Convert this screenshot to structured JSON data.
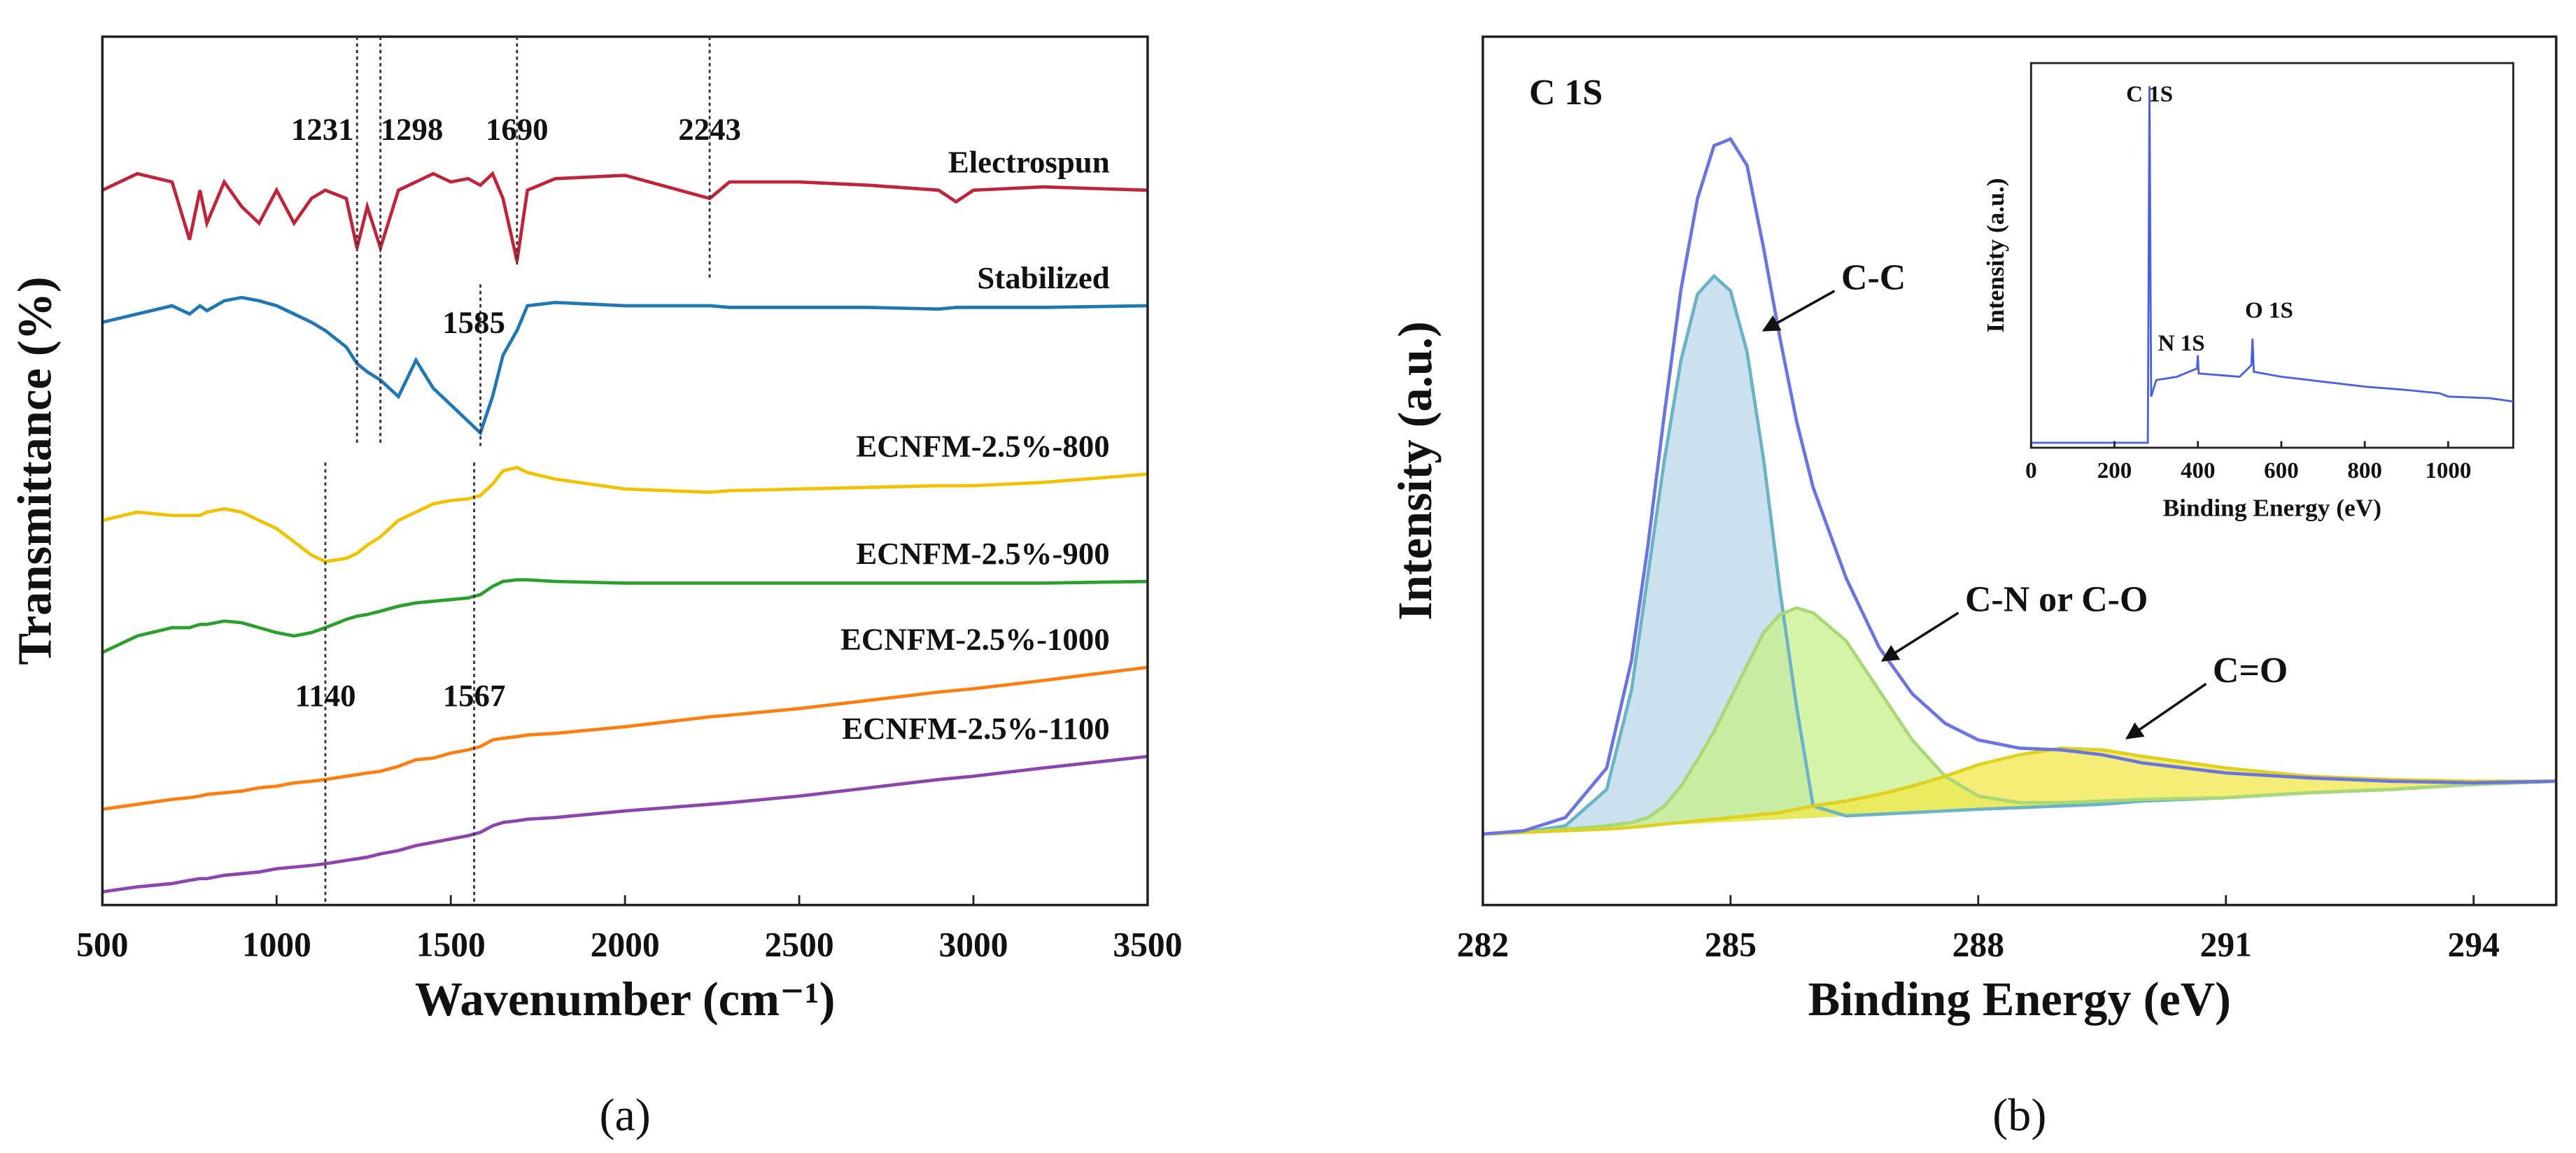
{
  "chart_data": [
    {
      "type": "line",
      "label": "(a)",
      "xlabel": "Wavenumber (cm⁻¹)",
      "ylabel": "Transmittance (%)",
      "xlim": [
        500,
        3500
      ],
      "xticks": [
        500,
        1000,
        1500,
        2000,
        2500,
        3000,
        3500
      ],
      "ylim": [
        0,
        526
      ],
      "x": [
        500,
        600,
        700,
        750,
        780,
        800,
        850,
        900,
        950,
        1000,
        1050,
        1100,
        1140,
        1200,
        1231,
        1260,
        1298,
        1350,
        1400,
        1450,
        1500,
        1550,
        1585,
        1620,
        1650,
        1690,
        1720,
        1800,
        2000,
        2243,
        2300,
        2500,
        2700,
        2900,
        2950,
        3000,
        3200,
        3500
      ],
      "series": [
        {
          "name": "Electrospun",
          "color": "#c0243a",
          "values": [
            433,
            443,
            438,
            403,
            433,
            413,
            438,
            423,
            413,
            433,
            413,
            428,
            433,
            428,
            398,
            423,
            398,
            433,
            438,
            443,
            438,
            440,
            436,
            443,
            428,
            390,
            433,
            440,
            442,
            428,
            438,
            438,
            436,
            433,
            426,
            433,
            435,
            433
          ]
        },
        {
          "name": "Stabilized",
          "color": "#1f77b4",
          "values": [
            353,
            358,
            363,
            358,
            363,
            360,
            366,
            368,
            366,
            363,
            358,
            353,
            348,
            338,
            328,
            323,
            318,
            308,
            330,
            313,
            303,
            293,
            286,
            308,
            333,
            348,
            363,
            365,
            363,
            363,
            362,
            362,
            362,
            361,
            362,
            362,
            362,
            363
          ]
        },
        {
          "name": "ECNFM-2.5%-800",
          "color": "#f2c200",
          "values": [
            233,
            238,
            236,
            236,
            236,
            238,
            240,
            238,
            233,
            228,
            220,
            212,
            208,
            210,
            213,
            218,
            223,
            233,
            238,
            243,
            245,
            246,
            248,
            255,
            263,
            265,
            262,
            258,
            252,
            250,
            251,
            252,
            253,
            254,
            254,
            254,
            256,
            261
          ]
        },
        {
          "name": "ECNFM-2.5%-900",
          "color": "#2ca02c",
          "values": [
            153,
            163,
            168,
            168,
            170,
            170,
            172,
            171,
            168,
            165,
            163,
            165,
            168,
            173,
            175,
            176,
            178,
            181,
            183,
            184,
            185,
            186,
            188,
            193,
            196,
            197,
            197,
            196,
            195,
            195,
            195,
            195,
            195,
            195,
            195,
            195,
            195,
            196
          ]
        },
        {
          "name": "ECNFM-2.5%-1000",
          "color": "#ff7f0e",
          "values": [
            58,
            61,
            64,
            65,
            66,
            67,
            68,
            69,
            71,
            72,
            74,
            75,
            76,
            78,
            79,
            80,
            81,
            84,
            88,
            89,
            92,
            94,
            96,
            100,
            101,
            102,
            103,
            104,
            108,
            114,
            115,
            119,
            124,
            129,
            130,
            131,
            136,
            144
          ]
        },
        {
          "name": "ECNFM-2.5%-1100",
          "color": "#8e44ad",
          "values": [
            8,
            11,
            13,
            15,
            16,
            16,
            18,
            19,
            20,
            22,
            23,
            24,
            25,
            27,
            28,
            29,
            31,
            33,
            36,
            38,
            40,
            42,
            44,
            48,
            50,
            51,
            52,
            53,
            57,
            61,
            62,
            66,
            71,
            76,
            77,
            78,
            83,
            90
          ]
        }
      ],
      "annotations": [
        {
          "text": "1231",
          "x": 1231
        },
        {
          "text": "1298",
          "x": 1298
        },
        {
          "text": "1690",
          "x": 1690
        },
        {
          "text": "2243",
          "x": 2243
        },
        {
          "text": "1585",
          "x": 1585
        },
        {
          "text": "1140",
          "x": 1140
        },
        {
          "text": "1567",
          "x": 1567
        }
      ]
    },
    {
      "type": "area",
      "label": "(b)",
      "title": "C 1S",
      "xlabel": "Binding Energy (eV)",
      "ylabel": "Intensity (a.u.)",
      "xlim": [
        282,
        295
      ],
      "xticks": [
        282,
        285,
        288,
        291,
        294
      ],
      "ylim": [
        0,
        526
      ],
      "x": [
        282,
        282.5,
        283,
        283.5,
        283.8,
        284,
        284.2,
        284.4,
        284.6,
        284.8,
        285,
        285.2,
        285.4,
        285.6,
        285.8,
        286,
        286.4,
        286.8,
        287.2,
        287.6,
        288,
        288.5,
        289,
        289.5,
        290,
        291,
        292,
        293,
        294,
        295
      ],
      "series": [
        {
          "name": "C-C",
          "color": "#6bb3c8",
          "fill": "#b9d8e8",
          "values": [
            43,
            44,
            48,
            70,
            130,
            200,
            270,
            330,
            370,
            381,
            372,
            335,
            270,
            190,
            120,
            60,
            54,
            55,
            56,
            57,
            58,
            59,
            60,
            61,
            63,
            65,
            68,
            70,
            73,
            75
          ]
        },
        {
          "name": "C-N or C-O",
          "color": "#a8d878",
          "fill": "#c8f08a",
          "values": [
            43,
            44,
            46,
            48,
            50,
            53,
            60,
            72,
            88,
            105,
            125,
            145,
            165,
            176,
            180,
            177,
            160,
            130,
            100,
            78,
            66,
            62,
            62,
            63,
            64,
            65,
            68,
            70,
            73,
            75
          ]
        },
        {
          "name": "C=O",
          "color": "#e0d020",
          "fill": "#f0e84a",
          "values": [
            43,
            44,
            45,
            46,
            47,
            48,
            49,
            50,
            51,
            52,
            53,
            54,
            55,
            56,
            58,
            60,
            63,
            67,
            72,
            78,
            85,
            91,
            95,
            94,
            90,
            83,
            78,
            76,
            75,
            75
          ]
        },
        {
          "color": "#6a75e0",
          "values": [
            43,
            45,
            53,
            83,
            148,
            218,
            298,
            373,
            428,
            460,
            464,
            448,
            398,
            343,
            293,
            253,
            198,
            156,
            128,
            110,
            100,
            95,
            94,
            91,
            86,
            80,
            77,
            75,
            74,
            75
          ]
        }
      ]
    },
    {
      "type": "line",
      "xlabel": "Binding Energy (eV)",
      "ylabel": "Intensity (a.u.)",
      "xlim": [
        0,
        1156
      ],
      "xticks": [
        0,
        200,
        400,
        600,
        800,
        1000
      ],
      "ylim": [
        0,
        233
      ],
      "x": [
        0,
        100,
        200,
        280,
        284,
        288,
        300,
        350,
        398,
        400,
        402,
        450,
        500,
        528,
        531,
        534,
        600,
        700,
        800,
        900,
        980,
        1000,
        1100,
        1156
      ],
      "series": [
        {
          "color": "#4a60e0",
          "values": [
            3,
            3,
            3,
            3,
            219,
            31,
            41,
            43,
            48,
            56,
            45,
            44,
            43,
            50,
            66,
            46,
            43,
            40,
            37,
            35,
            33,
            31,
            30,
            28
          ]
        }
      ],
      "annotations": [
        {
          "text": "C 1S",
          "x": 284
        },
        {
          "text": "N 1S",
          "x": 400
        },
        {
          "text": "O 1S",
          "x": 531
        }
      ]
    }
  ]
}
